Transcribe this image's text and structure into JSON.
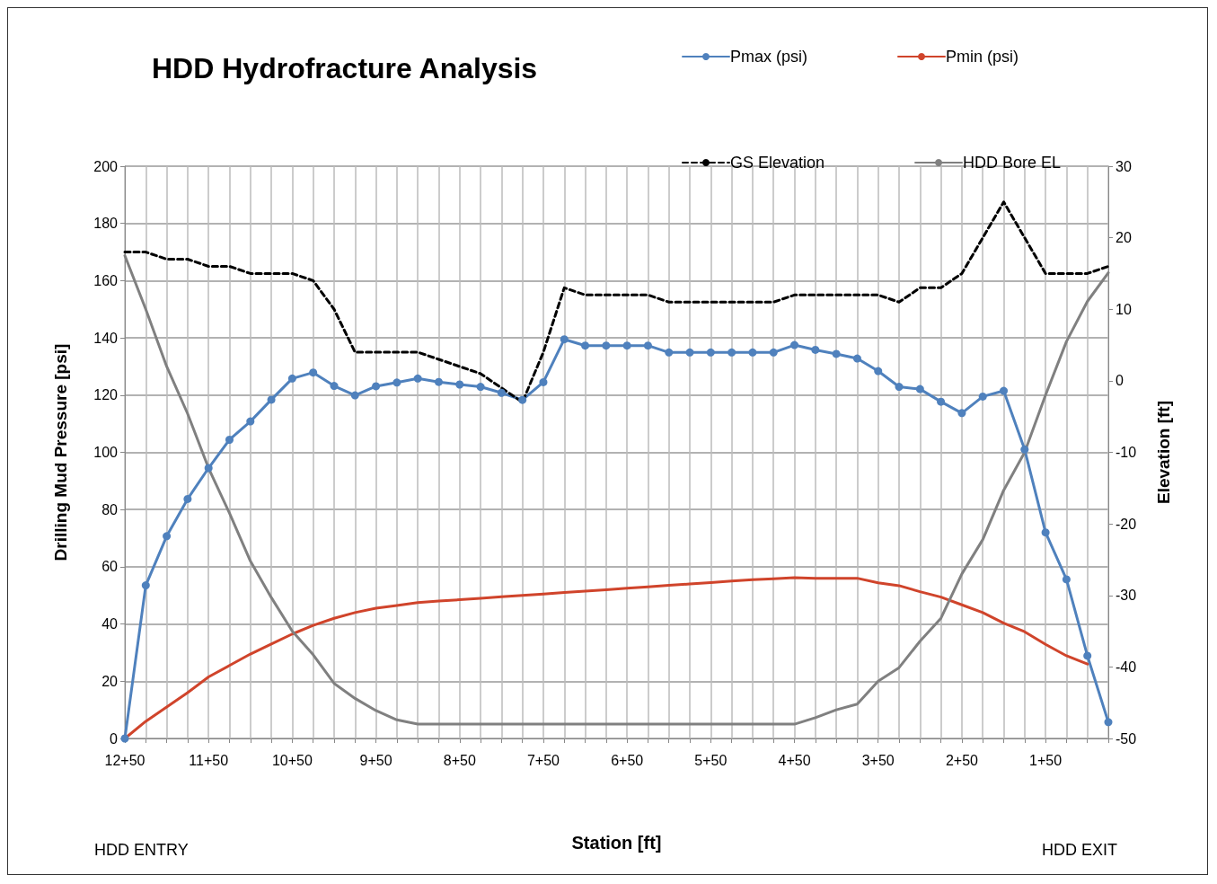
{
  "chart_data": {
    "type": "line",
    "title": "HDD Hydrofracture Analysis",
    "xlabel": "Station [ft]",
    "ylabel": "Drilling Mud Pressure [psi]",
    "y2label": "Elevation [ft]",
    "categories": [
      "12+50",
      null,
      null,
      null,
      "11+50",
      null,
      null,
      null,
      "10+50",
      null,
      null,
      null,
      "9+50",
      null,
      null,
      null,
      "8+50",
      null,
      null,
      null,
      "7+50",
      null,
      null,
      null,
      "6+50",
      null,
      null,
      null,
      "5+50",
      null,
      null,
      null,
      "4+50",
      null,
      null,
      null,
      "3+50",
      null,
      null,
      null,
      "2+50",
      null,
      null,
      null,
      "1+50",
      null,
      null,
      null
    ],
    "series": [
      {
        "name": "Pmax (psi)",
        "color": "#4f81bd",
        "marker": "circle",
        "line_style": "solid",
        "values": [
          0,
          53.5,
          70.7,
          83.7,
          94.5,
          104.4,
          110.8,
          118.4,
          125.8,
          127.9,
          123.2,
          119.9,
          123.1,
          124.4,
          125.8,
          124.6,
          123.7,
          122.9,
          120.8,
          118.3,
          124.5,
          139.5,
          137.3,
          137.3,
          137.3,
          137.3,
          134.9,
          134.9,
          134.9,
          134.9,
          134.9,
          134.9,
          137.5,
          135.8,
          134.4,
          132.8,
          128.4,
          122.9,
          122.1,
          117.7,
          113.7,
          119.5,
          121.5,
          101,
          72,
          55.6,
          28.9,
          5.7
        ]
      },
      {
        "name": "Pmin (psi)",
        "color": "#d0442b",
        "marker": "none",
        "line_style": "solid",
        "values": [
          0,
          6,
          11,
          16,
          21.5,
          25.5,
          29.5,
          33,
          36.5,
          39.5,
          42,
          44,
          45.5,
          46.5,
          47.5,
          48,
          48.5,
          49,
          49.5,
          50,
          50.5,
          51,
          51.5,
          52,
          52.5,
          53,
          53.5,
          54,
          54.5,
          55,
          55.5,
          55.8,
          56.2,
          56,
          56,
          56,
          54.4,
          53.4,
          51.3,
          49.4,
          46.7,
          44,
          40.3,
          37.3,
          32.9,
          28.9,
          26,
          null
        ]
      },
      {
        "name": "GS Elevation",
        "color": "#000000",
        "marker": "none",
        "line_style": "dashed",
        "axis": "y2",
        "values": [
          18,
          18,
          17,
          17,
          16,
          16,
          15,
          15,
          15,
          14,
          10,
          4,
          4,
          4,
          4,
          3,
          2,
          1,
          -1,
          -3,
          4,
          13,
          12,
          12,
          12,
          12,
          11,
          11,
          11,
          11,
          11,
          11,
          12,
          12,
          12,
          12,
          12,
          11,
          13,
          13,
          15,
          20,
          25,
          20,
          15,
          15,
          15,
          16
        ]
      },
      {
        "name": "HDD Bore EL",
        "color": "#808080",
        "marker": "none",
        "line_style": "solid",
        "axis": "y2",
        "values": [
          17.5,
          10,
          2,
          -4.6,
          -12.2,
          -18.5,
          -25.2,
          -30.3,
          -35,
          -38.3,
          -42.3,
          -44.4,
          -46.1,
          -47.4,
          -48,
          -48,
          -48,
          -48,
          -48,
          -48,
          -48,
          -48,
          -48,
          -48,
          -48,
          -48,
          -48,
          -48,
          -48,
          -48,
          -48,
          -48,
          -48,
          -47.1,
          -46,
          -45.2,
          -42,
          -40.1,
          -36.4,
          -33.2,
          -27,
          -22.2,
          -15.3,
          -10,
          -2,
          5.5,
          11.1,
          15.1
        ]
      }
    ],
    "ylim": [
      0,
      200
    ],
    "yticks": [
      0,
      20,
      40,
      60,
      80,
      100,
      120,
      140,
      160,
      180,
      200
    ],
    "y2lim": [
      -50,
      30
    ],
    "y2ticks": [
      -50,
      -40,
      -30,
      -20,
      -10,
      0,
      10,
      20,
      30
    ],
    "grid": true,
    "legend": "top right",
    "annotations": [
      "HDD ENTRY",
      "HDD EXIT"
    ]
  }
}
